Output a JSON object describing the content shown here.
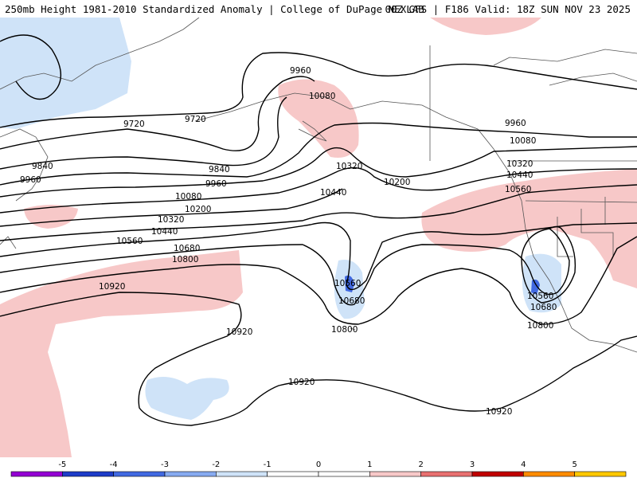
{
  "header": {
    "left_title": "250mb Height 1981-2010 Standardized Anomaly | College of DuPage NEXLAB",
    "right_title": "00Z GFS | F186 Valid: 18Z SUN NOV 23 2025"
  },
  "contour_labels": [
    "9960",
    "10080",
    "9720",
    "9720",
    "9840",
    "9960",
    "9840",
    "9960",
    "10080",
    "10200",
    "10320",
    "10440",
    "10560",
    "10680",
    "10800",
    "10920",
    "10320",
    "10200",
    "10440",
    "10560",
    "10680",
    "10800",
    "10920",
    "10920",
    "9960",
    "10080",
    "10320",
    "10440",
    "10560",
    "10560",
    "10680",
    "10800",
    "10920"
  ],
  "colorbar": {
    "ticks": [
      "-5",
      "-4",
      "-3",
      "-2",
      "-1",
      "0",
      "1",
      "2",
      "3",
      "4",
      "5"
    ],
    "colors": [
      "#9400d3",
      "#1e3cc8",
      "#4169e1",
      "#87aaf0",
      "#cfe3f8",
      "#ffffff",
      "#ffffff",
      "#f7c8c8",
      "#e87070",
      "#c00000",
      "#ff8c00",
      "#ffc800"
    ]
  }
}
